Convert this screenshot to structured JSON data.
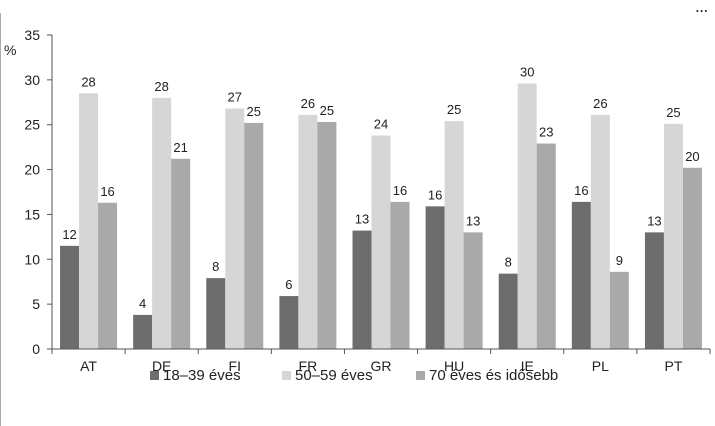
{
  "chart_data": {
    "type": "bar",
    "title_fragment": "...",
    "unit_label": "%",
    "ylim": [
      0,
      35
    ],
    "yticks": [
      0,
      5,
      10,
      15,
      20,
      25,
      30,
      35
    ],
    "grid": false,
    "legend_position": "bottom",
    "categories": [
      "AT",
      "DE",
      "FI",
      "FR",
      "GR",
      "HU",
      "IE",
      "PL",
      "PT"
    ],
    "series": [
      {
        "name": "18–39 éves",
        "color": "#6d6d6d",
        "values": [
          11.5,
          3.8,
          7.9,
          5.9,
          13.2,
          15.9,
          8.4,
          16.4,
          13.0
        ],
        "labels": [
          "12",
          "4",
          "8",
          "6",
          "13",
          "16",
          "8",
          "16",
          "13"
        ]
      },
      {
        "name": "50–59 éves",
        "color": "#d6d6d6",
        "values": [
          28.5,
          28.0,
          26.8,
          26.1,
          23.8,
          25.4,
          29.6,
          26.1,
          25.1
        ],
        "labels": [
          "28",
          "28",
          "27",
          "26",
          "24",
          "25",
          "30",
          "26",
          "25"
        ]
      },
      {
        "name": "70 éves és idősebb",
        "color": "#a9a9a9",
        "values": [
          16.3,
          21.2,
          25.2,
          25.3,
          16.4,
          13.0,
          22.9,
          8.6,
          20.2
        ],
        "labels": [
          "16",
          "21",
          "25",
          "25",
          "16",
          "13",
          "23",
          "9",
          "20"
        ]
      }
    ]
  }
}
